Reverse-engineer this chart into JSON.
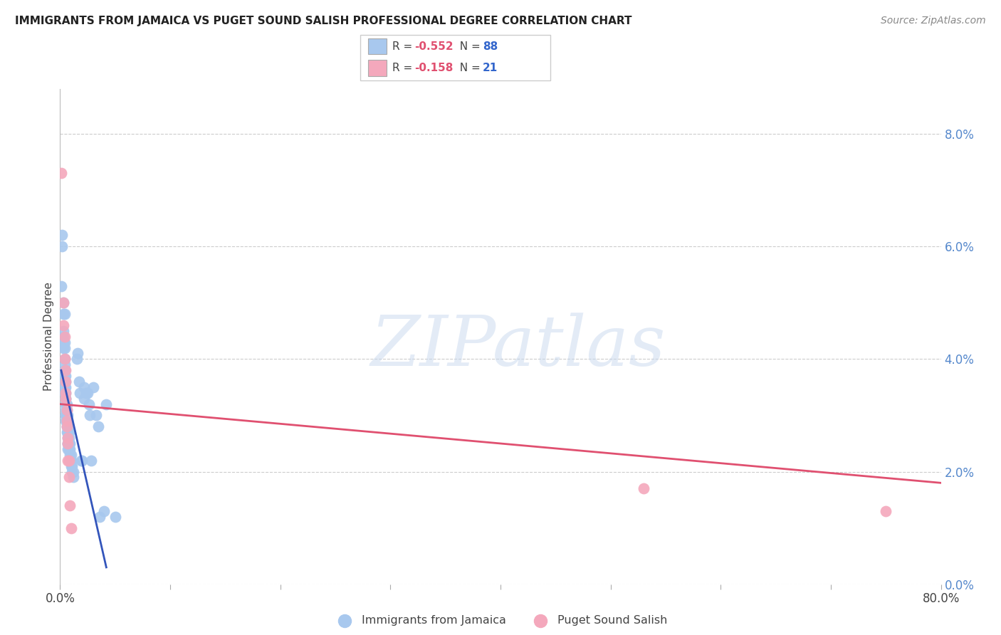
{
  "title": "IMMIGRANTS FROM JAMAICA VS PUGET SOUND SALISH PROFESSIONAL DEGREE CORRELATION CHART",
  "source": "Source: ZipAtlas.com",
  "ylabel": "Professional Degree",
  "blue_R": -0.552,
  "blue_N": 88,
  "pink_R": -0.158,
  "pink_N": 21,
  "blue_color": "#A8C8EE",
  "pink_color": "#F4A8BC",
  "blue_line_color": "#3355BB",
  "pink_line_color": "#E05070",
  "xlim": [
    0.0,
    0.8
  ],
  "ylim": [
    0.0,
    0.088
  ],
  "yticks": [
    0.0,
    0.02,
    0.04,
    0.06,
    0.08
  ],
  "ytick_labels": [
    "0.0%",
    "2.0%",
    "4.0%",
    "6.0%",
    "8.0%"
  ],
  "xticks": [
    0.0,
    0.1,
    0.2,
    0.3,
    0.4,
    0.5,
    0.6,
    0.7,
    0.8
  ],
  "xtick_labels": [
    "0.0%",
    "",
    "",
    "",
    "",
    "",
    "",
    "",
    "80.0%"
  ],
  "blue_scatter": [
    [
      0.001,
      0.053
    ],
    [
      0.002,
      0.062
    ],
    [
      0.002,
      0.06
    ],
    [
      0.003,
      0.05
    ],
    [
      0.003,
      0.048
    ],
    [
      0.003,
      0.045
    ],
    [
      0.003,
      0.044
    ],
    [
      0.003,
      0.043
    ],
    [
      0.003,
      0.042
    ],
    [
      0.004,
      0.048
    ],
    [
      0.004,
      0.043
    ],
    [
      0.004,
      0.042
    ],
    [
      0.004,
      0.04
    ],
    [
      0.004,
      0.039
    ],
    [
      0.004,
      0.038
    ],
    [
      0.004,
      0.038
    ],
    [
      0.004,
      0.037
    ],
    [
      0.004,
      0.036
    ],
    [
      0.004,
      0.036
    ],
    [
      0.004,
      0.035
    ],
    [
      0.004,
      0.034
    ],
    [
      0.005,
      0.037
    ],
    [
      0.005,
      0.036
    ],
    [
      0.005,
      0.035
    ],
    [
      0.005,
      0.034
    ],
    [
      0.005,
      0.033
    ],
    [
      0.005,
      0.033
    ],
    [
      0.005,
      0.032
    ],
    [
      0.005,
      0.032
    ],
    [
      0.005,
      0.031
    ],
    [
      0.005,
      0.03
    ],
    [
      0.005,
      0.03
    ],
    [
      0.005,
      0.029
    ],
    [
      0.006,
      0.032
    ],
    [
      0.006,
      0.031
    ],
    [
      0.006,
      0.03
    ],
    [
      0.006,
      0.03
    ],
    [
      0.006,
      0.029
    ],
    [
      0.006,
      0.029
    ],
    [
      0.006,
      0.028
    ],
    [
      0.006,
      0.028
    ],
    [
      0.006,
      0.027
    ],
    [
      0.007,
      0.03
    ],
    [
      0.007,
      0.029
    ],
    [
      0.007,
      0.028
    ],
    [
      0.007,
      0.027
    ],
    [
      0.007,
      0.027
    ],
    [
      0.007,
      0.026
    ],
    [
      0.007,
      0.025
    ],
    [
      0.007,
      0.025
    ],
    [
      0.007,
      0.024
    ],
    [
      0.008,
      0.027
    ],
    [
      0.008,
      0.026
    ],
    [
      0.008,
      0.025
    ],
    [
      0.008,
      0.025
    ],
    [
      0.008,
      0.024
    ],
    [
      0.008,
      0.024
    ],
    [
      0.009,
      0.025
    ],
    [
      0.009,
      0.024
    ],
    [
      0.009,
      0.023
    ],
    [
      0.01,
      0.023
    ],
    [
      0.01,
      0.022
    ],
    [
      0.01,
      0.022
    ],
    [
      0.01,
      0.021
    ],
    [
      0.011,
      0.021
    ],
    [
      0.011,
      0.02
    ],
    [
      0.012,
      0.02
    ],
    [
      0.012,
      0.019
    ],
    [
      0.015,
      0.04
    ],
    [
      0.016,
      0.041
    ],
    [
      0.017,
      0.036
    ],
    [
      0.018,
      0.034
    ],
    [
      0.019,
      0.022
    ],
    [
      0.02,
      0.022
    ],
    [
      0.022,
      0.035
    ],
    [
      0.022,
      0.033
    ],
    [
      0.024,
      0.034
    ],
    [
      0.025,
      0.034
    ],
    [
      0.026,
      0.032
    ],
    [
      0.027,
      0.03
    ],
    [
      0.028,
      0.022
    ],
    [
      0.03,
      0.035
    ],
    [
      0.033,
      0.03
    ],
    [
      0.035,
      0.028
    ],
    [
      0.036,
      0.012
    ],
    [
      0.04,
      0.013
    ],
    [
      0.042,
      0.032
    ],
    [
      0.05,
      0.012
    ]
  ],
  "pink_scatter": [
    [
      0.001,
      0.073
    ],
    [
      0.003,
      0.05
    ],
    [
      0.003,
      0.046
    ],
    [
      0.004,
      0.044
    ],
    [
      0.004,
      0.04
    ],
    [
      0.005,
      0.038
    ],
    [
      0.005,
      0.036
    ],
    [
      0.005,
      0.034
    ],
    [
      0.005,
      0.033
    ],
    [
      0.006,
      0.031
    ],
    [
      0.006,
      0.029
    ],
    [
      0.006,
      0.028
    ],
    [
      0.007,
      0.026
    ],
    [
      0.007,
      0.025
    ],
    [
      0.007,
      0.022
    ],
    [
      0.008,
      0.022
    ],
    [
      0.008,
      0.019
    ],
    [
      0.009,
      0.014
    ],
    [
      0.01,
      0.01
    ],
    [
      0.53,
      0.017
    ],
    [
      0.75,
      0.013
    ]
  ],
  "blue_trendline_x": [
    0.001,
    0.042
  ],
  "blue_trendline_y": [
    0.038,
    0.003
  ],
  "pink_trendline_x": [
    0.0,
    0.8
  ],
  "pink_trendline_y": [
    0.032,
    0.018
  ],
  "watermark_text": "ZIPatlas",
  "legend_label_blue": "Immigrants from Jamaica",
  "legend_label_pink": "Puget Sound Salish"
}
